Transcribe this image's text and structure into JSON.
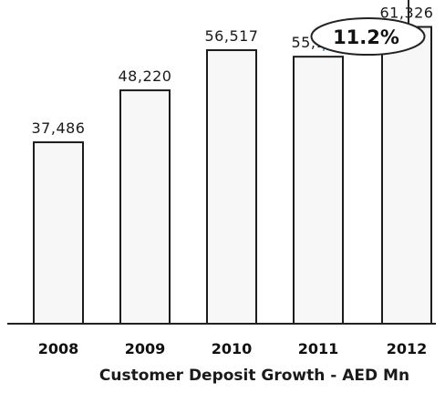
{
  "chart_data": {
    "type": "bar",
    "title": "Customer Deposit Growth - AED Mn",
    "xlabel": "",
    "ylabel": "",
    "categories": [
      "2008",
      "2009",
      "2010",
      "2011",
      "2012"
    ],
    "values": [
      37486,
      48220,
      56517,
      55172,
      61326
    ],
    "value_labels": [
      "37,486",
      "48,220",
      "56,517",
      "55,172",
      "61,326"
    ],
    "ylim": [
      0,
      65000
    ],
    "grid": false,
    "legend": "none",
    "annotation": {
      "text": "11.2%",
      "from": "2011",
      "to": "2012"
    },
    "colors": {
      "bar_fill": "#f7f7f8",
      "bar_stroke": "#1c1c1c",
      "axis": "#222222",
      "annotation_stroke": "#7da3cf",
      "arrow": "#222222"
    }
  }
}
